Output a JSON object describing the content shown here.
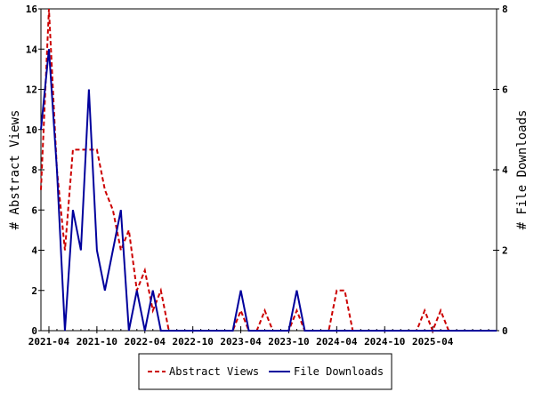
{
  "chart_data": {
    "type": "line",
    "xlabel": "",
    "ylabel": "# Abstract Views",
    "y2label": "# File Downloads",
    "ylim": [
      0,
      16
    ],
    "y2lim": [
      0,
      8
    ],
    "yticks": [
      "0",
      "2",
      "4",
      "6",
      "8",
      "10",
      "12",
      "14",
      "16"
    ],
    "y2ticks": [
      "0",
      "2",
      "4",
      "6",
      "8"
    ],
    "xlim": [
      "2021-03",
      "2025-12"
    ],
    "xticks": [
      "2021-04",
      "2021-10",
      "2022-04",
      "2022-10",
      "2023-04",
      "2023-10",
      "2024-04",
      "2024-10",
      "2025-04"
    ],
    "grid": false,
    "legend": "bottom-center",
    "colors": {
      "abstract": "#cc0000",
      "downloads": "#00009c"
    },
    "months": [
      "2021-03",
      "2021-04",
      "2021-05",
      "2021-06",
      "2021-07",
      "2021-08",
      "2021-09",
      "2021-10",
      "2021-11",
      "2021-12",
      "2022-01",
      "2022-02",
      "2022-03",
      "2022-04",
      "2022-05",
      "2022-06",
      "2022-07",
      "2022-08",
      "2022-09",
      "2022-10",
      "2022-11",
      "2022-12",
      "2023-01",
      "2023-02",
      "2023-03",
      "2023-04",
      "2023-05",
      "2023-06",
      "2023-07",
      "2023-08",
      "2023-09",
      "2023-10",
      "2023-11",
      "2023-12",
      "2024-01",
      "2024-02",
      "2024-03",
      "2024-04",
      "2024-05",
      "2024-06",
      "2024-07",
      "2024-08",
      "2024-09",
      "2024-10",
      "2024-11",
      "2024-12",
      "2025-01",
      "2025-02",
      "2025-03",
      "2025-04",
      "2025-05",
      "2025-06",
      "2025-07",
      "2025-08",
      "2025-09",
      "2025-10",
      "2025-11",
      "2025-12"
    ],
    "series": [
      {
        "name": "Abstract Views",
        "axis": "left",
        "style": "dashed",
        "values": [
          7,
          16,
          8,
          4,
          9,
          9,
          9,
          9,
          7,
          6,
          4,
          5,
          2,
          3,
          1,
          2,
          0,
          0,
          0,
          0,
          0,
          0,
          0,
          0,
          0,
          1,
          0,
          0,
          1,
          0,
          0,
          0,
          1,
          0,
          0,
          0,
          0,
          2,
          2,
          0,
          0,
          0,
          0,
          0,
          0,
          0,
          0,
          0,
          1,
          0,
          1,
          0,
          0,
          0,
          0,
          0,
          0,
          0
        ]
      },
      {
        "name": "File Downloads",
        "axis": "right",
        "style": "solid",
        "values": [
          5,
          7,
          4,
          0,
          3,
          2,
          6,
          2,
          1,
          2,
          3,
          0,
          1,
          0,
          1,
          0,
          0,
          0,
          0,
          0,
          0,
          0,
          0,
          0,
          0,
          1,
          0,
          0,
          0,
          0,
          0,
          0,
          1,
          0,
          0,
          0,
          0,
          0,
          0,
          0,
          0,
          0,
          0,
          0,
          0,
          0,
          0,
          0,
          0,
          0,
          0,
          0,
          0,
          0,
          0,
          0,
          0,
          0
        ]
      }
    ]
  }
}
